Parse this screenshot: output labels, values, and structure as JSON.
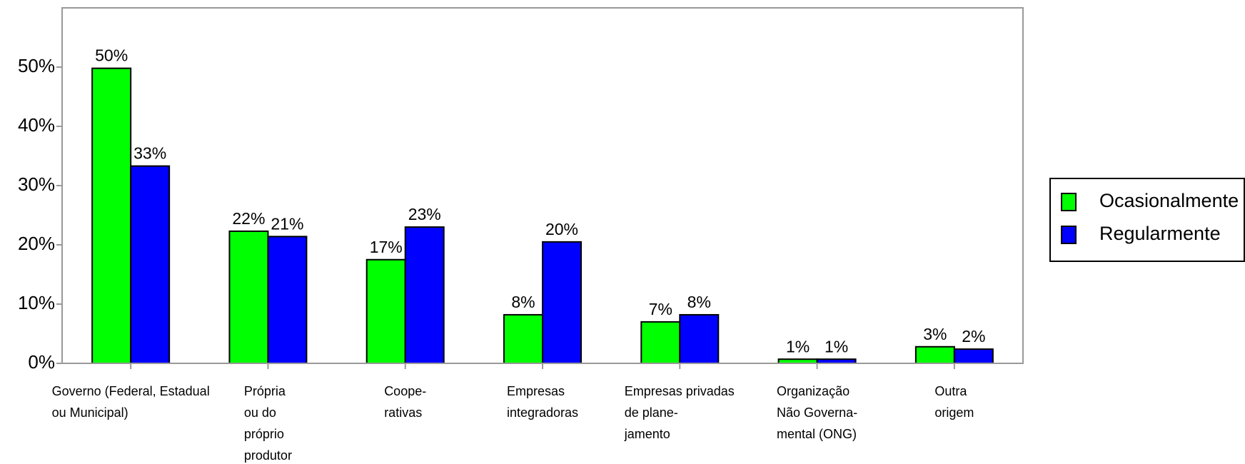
{
  "chart_data": {
    "type": "bar",
    "categories": [
      "Governo (Federal, Estadual\nou Municipal)",
      "Própria\nou do\npróprio\nprodutor",
      "Coope-\nrativas",
      "Empresas\nintegradoras",
      "Empresas privadas\nde plane-\njamento",
      "Organização\nNão Governa-\nmental (ONG)",
      "Outra\norigem"
    ],
    "series": [
      {
        "name": "Ocasionalmente",
        "color": "#00ff00",
        "values": [
          49.8,
          22.3,
          17.5,
          8.2,
          7.0,
          0.7,
          2.8
        ],
        "value_labels": [
          "50%",
          "22%",
          "17%",
          "8%",
          "7%",
          "1%",
          "3%"
        ]
      },
      {
        "name": "Regularmente",
        "color": "#0000ff",
        "values": [
          33.3,
          21.4,
          23.0,
          20.5,
          8.2,
          0.7,
          2.4
        ],
        "value_labels": [
          "33%",
          "21%",
          "23%",
          "20%",
          "8%",
          "1%",
          "2%"
        ]
      }
    ],
    "ylim": [
      0,
      60
    ],
    "yticks": [
      {
        "value": 0,
        "label": "0%"
      },
      {
        "value": 10,
        "label": "10%"
      },
      {
        "value": 20,
        "label": "20%"
      },
      {
        "value": 30,
        "label": "30%"
      },
      {
        "value": 40,
        "label": "40%"
      },
      {
        "value": 50,
        "label": "50%"
      }
    ],
    "legend": "right"
  }
}
